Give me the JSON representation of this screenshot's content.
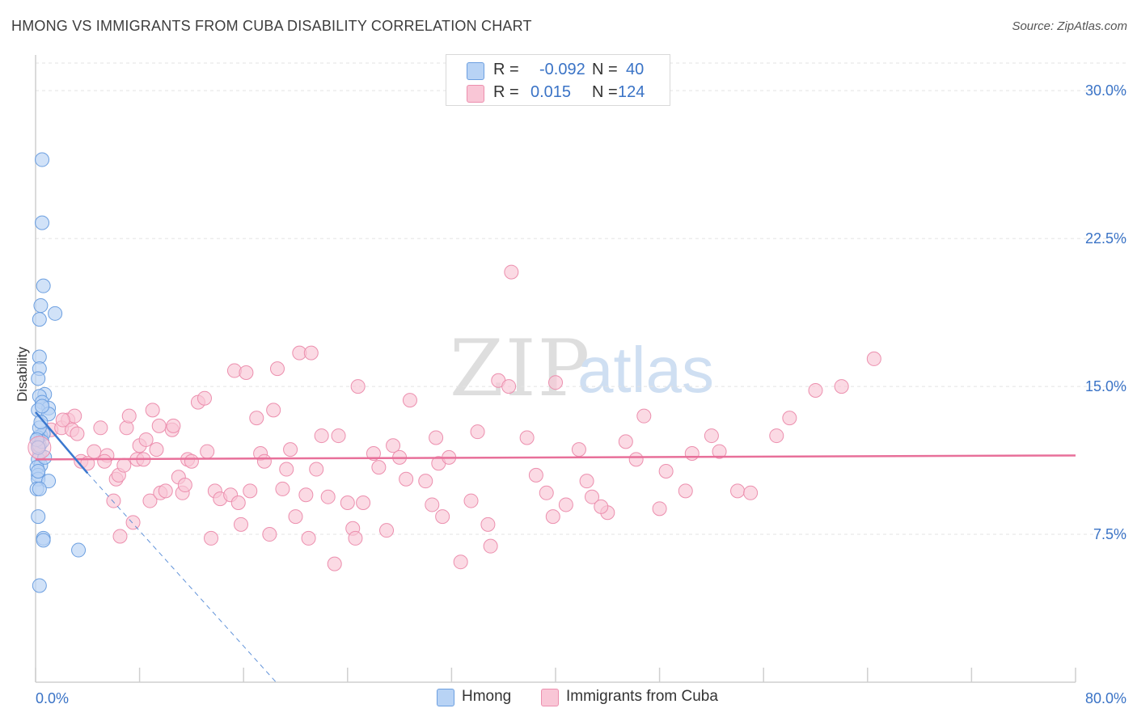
{
  "title": "HMONG VS IMMIGRANTS FROM CUBA DISABILITY CORRELATION CHART",
  "source": "Source: ZipAtlas.com",
  "watermark": {
    "zip": "ZIP",
    "atlas": "atlas"
  },
  "legend_top": [
    {
      "r_label": "R = ",
      "r_value": "-0.092",
      "n_label": "N = ",
      "n_value": "40"
    },
    {
      "r_label": "R = ",
      "r_value": "0.015",
      "n_label": "N = ",
      "n_value": "124"
    }
  ],
  "colors": {
    "hmong_fill": "#b8d3f5",
    "hmong_stroke": "#6c9fe0",
    "hmong_line": "#3a78cf",
    "cuba_fill": "#f9c6d6",
    "cuba_stroke": "#ec8fae",
    "cuba_line": "#e8709a",
    "tick_label": "#3a73c6",
    "grid": "#e3e3e3"
  },
  "chart_data": {
    "type": "scatter",
    "title": "HMONG VS IMMIGRANTS FROM CUBA DISABILITY CORRELATION CHART",
    "xlabel": "",
    "ylabel": "Disability",
    "xlim": [
      0,
      80
    ],
    "ylim": [
      0,
      31.4
    ],
    "x_tick_labels": [
      "0.0%",
      "80.0%"
    ],
    "y_ticks": [
      7.5,
      15.0,
      22.5,
      30.0
    ],
    "y_tick_labels": [
      "7.5%",
      "15.0%",
      "22.5%",
      "30.0%"
    ],
    "grid": "horizontal dashed",
    "legend": "bottom-center",
    "series": [
      {
        "name": "Hmong",
        "R": -0.092,
        "N": 40,
        "trend": {
          "solid": [
            [
              0,
              13.7
            ],
            [
              4,
              10.6
            ]
          ],
          "dashed": [
            [
              4,
              10.6
            ],
            [
              18.5,
              0
            ]
          ]
        },
        "points": [
          [
            0.5,
            26.5
          ],
          [
            0.5,
            23.3
          ],
          [
            0.6,
            20.1
          ],
          [
            0.4,
            19.1
          ],
          [
            1.5,
            18.7
          ],
          [
            0.3,
            18.4
          ],
          [
            0.3,
            16.5
          ],
          [
            0.3,
            15.9
          ],
          [
            0.2,
            15.4
          ],
          [
            0.7,
            14.6
          ],
          [
            0.3,
            14.5
          ],
          [
            0.5,
            14.2
          ],
          [
            1.0,
            13.9
          ],
          [
            0.2,
            13.8
          ],
          [
            1.0,
            13.6
          ],
          [
            0.4,
            12.5
          ],
          [
            0.6,
            12.6
          ],
          [
            0.2,
            12.4
          ],
          [
            0.3,
            12.0
          ],
          [
            0.5,
            12.2
          ],
          [
            0.2,
            11.3
          ],
          [
            0.4,
            11.0
          ],
          [
            0.1,
            10.9
          ],
          [
            0.2,
            10.5
          ],
          [
            0.2,
            10.3
          ],
          [
            1.0,
            10.2
          ],
          [
            0.1,
            9.8
          ],
          [
            0.3,
            9.8
          ],
          [
            0.2,
            8.4
          ],
          [
            0.6,
            7.3
          ],
          [
            0.6,
            7.2
          ],
          [
            3.3,
            6.7
          ],
          [
            0.3,
            4.9
          ],
          [
            0.3,
            12.9
          ],
          [
            0.1,
            12.3
          ],
          [
            0.7,
            11.4
          ],
          [
            0.4,
            13.2
          ],
          [
            0.2,
            10.7
          ],
          [
            0.5,
            14.0
          ],
          [
            0.2,
            11.9
          ]
        ]
      },
      {
        "name": "Immigrants from Cuba",
        "R": 0.015,
        "N": 124,
        "trend": {
          "solid": [
            [
              0,
              11.3
            ],
            [
              80,
              11.5
            ]
          ]
        },
        "points": [
          [
            0.2,
            12.0
          ],
          [
            0.3,
            11.6
          ],
          [
            1.2,
            12.8
          ],
          [
            2.0,
            12.9
          ],
          [
            2.5,
            13.3
          ],
          [
            3.0,
            13.5
          ],
          [
            2.8,
            12.8
          ],
          [
            3.5,
            11.2
          ],
          [
            4.0,
            11.1
          ],
          [
            4.5,
            11.7
          ],
          [
            5.0,
            12.9
          ],
          [
            5.5,
            11.5
          ],
          [
            6.0,
            9.2
          ],
          [
            6.2,
            10.3
          ],
          [
            6.5,
            7.4
          ],
          [
            6.4,
            10.5
          ],
          [
            7.0,
            12.9
          ],
          [
            7.2,
            13.5
          ],
          [
            7.5,
            8.1
          ],
          [
            7.8,
            11.3
          ],
          [
            8.0,
            12.0
          ],
          [
            8.3,
            11.3
          ],
          [
            8.5,
            12.3
          ],
          [
            8.8,
            9.2
          ],
          [
            9.0,
            13.8
          ],
          [
            9.3,
            11.8
          ],
          [
            9.5,
            13.0
          ],
          [
            9.6,
            9.6
          ],
          [
            10.0,
            9.7
          ],
          [
            10.5,
            12.8
          ],
          [
            10.6,
            13.0
          ],
          [
            11.0,
            10.4
          ],
          [
            11.3,
            9.6
          ],
          [
            11.5,
            10.0
          ],
          [
            11.7,
            11.3
          ],
          [
            12.0,
            11.2
          ],
          [
            12.5,
            14.2
          ],
          [
            13.0,
            14.4
          ],
          [
            13.2,
            11.7
          ],
          [
            13.5,
            7.3
          ],
          [
            13.8,
            9.7
          ],
          [
            14.2,
            9.3
          ],
          [
            15.0,
            9.5
          ],
          [
            15.3,
            15.8
          ],
          [
            15.6,
            9.1
          ],
          [
            15.8,
            8.0
          ],
          [
            16.2,
            15.7
          ],
          [
            16.5,
            9.7
          ],
          [
            17.0,
            13.4
          ],
          [
            17.3,
            11.6
          ],
          [
            17.6,
            11.2
          ],
          [
            18.0,
            7.5
          ],
          [
            18.3,
            13.8
          ],
          [
            18.6,
            15.9
          ],
          [
            19.0,
            9.8
          ],
          [
            19.3,
            10.8
          ],
          [
            19.6,
            11.8
          ],
          [
            20.0,
            8.4
          ],
          [
            20.3,
            16.7
          ],
          [
            20.8,
            9.5
          ],
          [
            21.0,
            7.3
          ],
          [
            21.2,
            16.7
          ],
          [
            21.6,
            10.8
          ],
          [
            22.0,
            12.5
          ],
          [
            22.5,
            9.4
          ],
          [
            23.0,
            6.0
          ],
          [
            23.3,
            12.5
          ],
          [
            24.0,
            9.1
          ],
          [
            24.4,
            7.8
          ],
          [
            24.6,
            7.3
          ],
          [
            24.8,
            15.0
          ],
          [
            25.2,
            9.1
          ],
          [
            26.0,
            11.6
          ],
          [
            26.4,
            10.9
          ],
          [
            27.0,
            7.7
          ],
          [
            27.5,
            12.0
          ],
          [
            28.0,
            11.4
          ],
          [
            28.5,
            10.3
          ],
          [
            28.8,
            14.3
          ],
          [
            30.0,
            10.2
          ],
          [
            30.5,
            9.0
          ],
          [
            30.8,
            12.4
          ],
          [
            31.0,
            11.1
          ],
          [
            31.3,
            8.4
          ],
          [
            31.8,
            11.4
          ],
          [
            32.7,
            6.1
          ],
          [
            33.5,
            9.2
          ],
          [
            34.0,
            12.7
          ],
          [
            34.8,
            8.0
          ],
          [
            35.0,
            6.9
          ],
          [
            35.6,
            15.3
          ],
          [
            36.4,
            15.0
          ],
          [
            36.6,
            20.8
          ],
          [
            37.8,
            12.4
          ],
          [
            38.5,
            10.5
          ],
          [
            39.3,
            9.6
          ],
          [
            39.8,
            8.4
          ],
          [
            40.0,
            15.2
          ],
          [
            40.8,
            9.0
          ],
          [
            41.8,
            11.8
          ],
          [
            42.4,
            10.2
          ],
          [
            42.8,
            9.4
          ],
          [
            44.0,
            8.6
          ],
          [
            45.4,
            12.2
          ],
          [
            46.2,
            11.3
          ],
          [
            46.8,
            13.5
          ],
          [
            48.0,
            8.8
          ],
          [
            48.5,
            10.7
          ],
          [
            50.0,
            9.7
          ],
          [
            50.5,
            11.6
          ],
          [
            52.0,
            12.5
          ],
          [
            52.6,
            11.7
          ],
          [
            54.0,
            9.7
          ],
          [
            55.0,
            9.6
          ],
          [
            57.0,
            12.5
          ],
          [
            58.0,
            13.4
          ],
          [
            60.0,
            14.8
          ],
          [
            62.0,
            15.0
          ],
          [
            64.5,
            16.4
          ],
          [
            43.5,
            8.9
          ],
          [
            6.8,
            11.0
          ],
          [
            3.2,
            12.6
          ],
          [
            5.3,
            11.2
          ],
          [
            2.1,
            13.3
          ]
        ]
      }
    ]
  },
  "bottom_legend": [
    {
      "label": "Hmong"
    },
    {
      "label": "Immigrants from Cuba"
    }
  ]
}
